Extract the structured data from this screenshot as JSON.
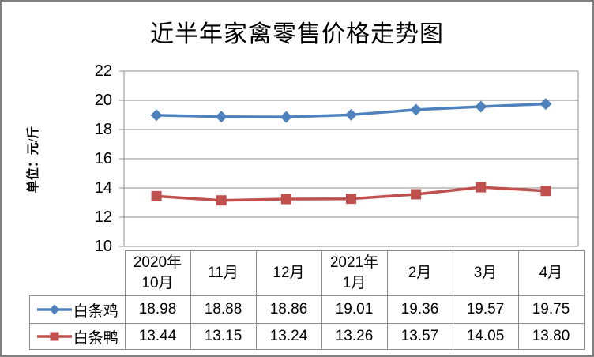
{
  "title": "近半年家禽零售价格走势图",
  "y_axis_label": "单位：元/斤",
  "colors": {
    "series_chicken": "#4F81BD",
    "series_duck": "#C0504D",
    "gridline": "#8c8c8c",
    "table_border": "#8c8c8c",
    "outer_frame": "#808080",
    "text": "#000000"
  },
  "chart_data": {
    "type": "line",
    "title": "近半年家禽零售价格走势图",
    "ylabel": "单位：元/斤",
    "xlabel": "",
    "categories": [
      "2020年\n10月",
      "11月",
      "12月",
      "2021年\n1月",
      "2月",
      "3月",
      "4月"
    ],
    "series": [
      {
        "name": "白条鸡",
        "marker": "diamond",
        "color": "#4F81BD",
        "values": [
          18.98,
          18.88,
          18.86,
          19.01,
          19.36,
          19.57,
          19.75
        ]
      },
      {
        "name": "白条鸭",
        "marker": "square",
        "color": "#C0504D",
        "values": [
          13.44,
          13.15,
          13.24,
          13.26,
          13.57,
          14.05,
          13.8
        ]
      }
    ],
    "ylim": [
      10,
      22
    ],
    "yticks": [
      22,
      20,
      18,
      16,
      14,
      12,
      10
    ],
    "grid": true,
    "legend_position": "table-left",
    "data_table": true
  }
}
